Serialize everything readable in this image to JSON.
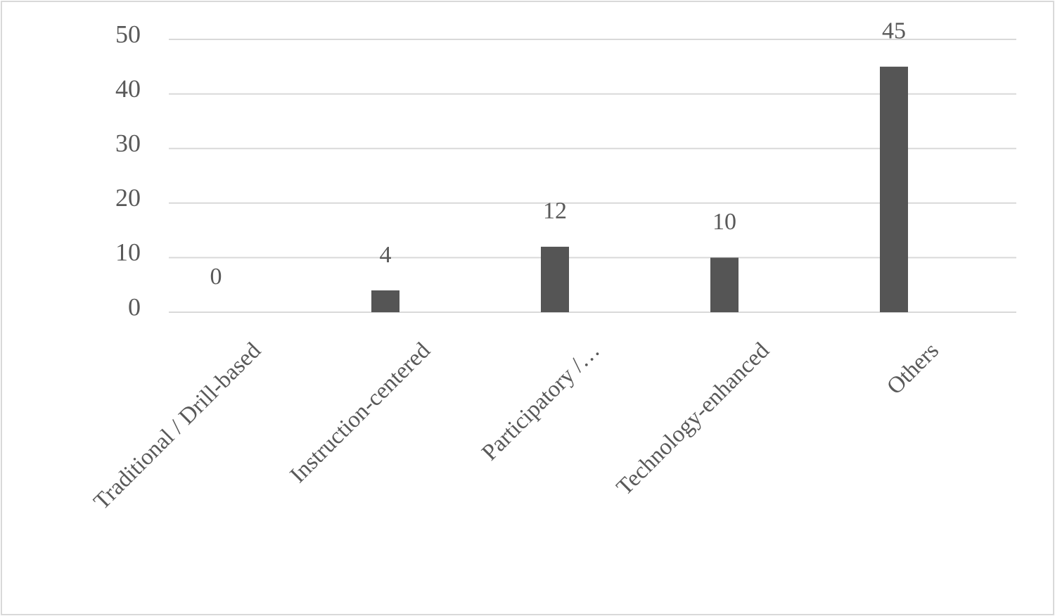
{
  "chart_data": {
    "type": "bar",
    "categories": [
      "Traditional / Drill-based",
      "Instruction-centered",
      "Participatory /…",
      "Technology-enhanced",
      "Others"
    ],
    "values": [
      0,
      4,
      12,
      10,
      45
    ],
    "color": "#555555",
    "ylim": [
      0,
      50
    ],
    "yticks": [
      0,
      10,
      20,
      30,
      40,
      50
    ],
    "grid": true,
    "data_labels": true
  }
}
